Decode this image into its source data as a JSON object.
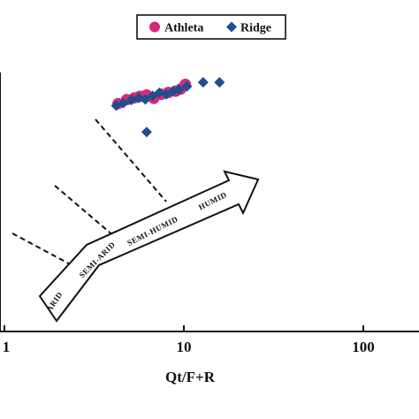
{
  "colors": {
    "athleta": "#d62a78",
    "ridge": "#1f4e8c",
    "axis": "#111111"
  },
  "legend": {
    "items": [
      {
        "label": "Athleta",
        "marker": "circle",
        "color": "#d62a78"
      },
      {
        "label": "Ridge",
        "marker": "diamond",
        "color": "#1f4e8c"
      }
    ]
  },
  "climate_arrow": {
    "labels": [
      "ARID",
      "SEMI-ARID",
      "SEMI-HUMID",
      "HUMID"
    ]
  },
  "chart_data": {
    "type": "scatter",
    "x_scale": "log",
    "xlabel": "Qt/F+R",
    "ylabel": "",
    "xlim": [
      1,
      100
    ],
    "x_ticks": [
      {
        "value": 1,
        "label": "1"
      },
      {
        "value": 10,
        "label": "10"
      },
      {
        "value": 100,
        "label": "100"
      }
    ],
    "y_ticks": [],
    "ylim": [
      0,
      100
    ],
    "grid": false,
    "legend_position": "top-center",
    "series": [
      {
        "name": "Athleta",
        "marker": "circle",
        "color": "#d62a78",
        "points": [
          {
            "x": 4.3,
            "y": 88.0
          },
          {
            "x": 4.8,
            "y": 89.5
          },
          {
            "x": 5.3,
            "y": 90.2
          },
          {
            "x": 5.7,
            "y": 90.8
          },
          {
            "x": 6.2,
            "y": 91.3
          },
          {
            "x": 6.8,
            "y": 90.0
          },
          {
            "x": 7.5,
            "y": 91.6
          },
          {
            "x": 8.2,
            "y": 92.3
          },
          {
            "x": 9.0,
            "y": 92.8
          },
          {
            "x": 9.6,
            "y": 93.6
          },
          {
            "x": 10.2,
            "y": 95.4
          }
        ]
      },
      {
        "name": "Ridge",
        "marker": "diamond",
        "color": "#1f4e8c",
        "points": [
          {
            "x": 4.2,
            "y": 87.2
          },
          {
            "x": 4.6,
            "y": 88.2
          },
          {
            "x": 5.1,
            "y": 89.4
          },
          {
            "x": 5.6,
            "y": 90.2
          },
          {
            "x": 6.1,
            "y": 89.6
          },
          {
            "x": 6.7,
            "y": 91.0
          },
          {
            "x": 7.3,
            "y": 92.2
          },
          {
            "x": 8.0,
            "y": 91.6
          },
          {
            "x": 8.7,
            "y": 92.8
          },
          {
            "x": 9.4,
            "y": 93.4
          },
          {
            "x": 10.4,
            "y": 94.6
          },
          {
            "x": 12.8,
            "y": 96.2
          },
          {
            "x": 15.8,
            "y": 96.2
          },
          {
            "x": 6.2,
            "y": 77.0
          }
        ]
      }
    ]
  }
}
